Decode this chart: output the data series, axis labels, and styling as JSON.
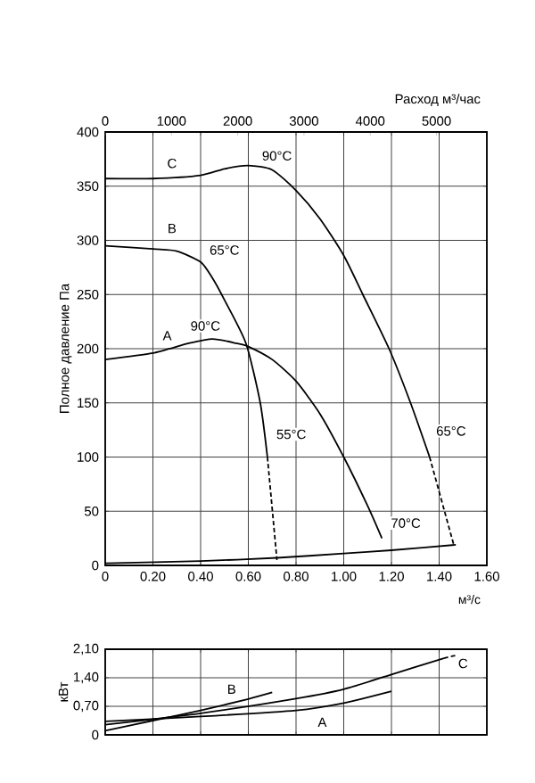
{
  "chart_data": [
    {
      "type": "line",
      "ylabel": "Полное давление Па",
      "xlabel": "м³/с",
      "x2label": "Расход м³/час",
      "xlim": [
        0,
        1.6
      ],
      "ylim": [
        0,
        400
      ],
      "x2lim": [
        0,
        5760
      ],
      "xticks": [
        0,
        {
          "value": 0.2,
          "label": "0.20"
        },
        {
          "value": 0.4,
          "label": "0.40"
        },
        {
          "value": 0.6,
          "label": "0.60"
        },
        {
          "value": 0.8,
          "label": "0.80"
        },
        {
          "value": 1.0,
          "label": "1.00"
        },
        {
          "value": 1.2,
          "label": "1.20"
        },
        {
          "value": 1.4,
          "label": "1.40"
        },
        {
          "value": 1.6,
          "label": "1.60"
        }
      ],
      "yticks": [
        0,
        50,
        100,
        150,
        200,
        250,
        300,
        350,
        400
      ],
      "x2ticks": [
        0,
        1000,
        2000,
        3000,
        4000,
        5000
      ],
      "grid": true,
      "marker": "none",
      "series": [
        {
          "color": "#000000",
          "line_style": "solid",
          "x": [
            0,
            0.2,
            0.4,
            0.5,
            0.6,
            0.7,
            0.8,
            0.9,
            1.0,
            1.08,
            1.19,
            1.28,
            1.36
          ],
          "values": [
            357,
            357,
            360,
            366,
            369,
            365,
            346,
            320,
            286,
            250,
            200,
            150,
            100
          ]
        },
        {
          "color": "#000000",
          "line_style": "dashed",
          "x": [
            1.36,
            1.46
          ],
          "values": [
            100,
            20
          ]
        },
        {
          "color": "#000000",
          "line_style": "solid",
          "x": [
            0,
            0.2,
            0.3,
            0.4,
            0.45,
            0.5,
            0.59,
            0.65,
            0.68
          ],
          "values": [
            295,
            292,
            290,
            280,
            265,
            245,
            205,
            150,
            100
          ]
        },
        {
          "color": "#000000",
          "line_style": "dashed",
          "x": [
            0.68,
            0.72
          ],
          "values": [
            100,
            5
          ]
        },
        {
          "color": "#000000",
          "line_style": "solid",
          "x": [
            0,
            0.2,
            0.35,
            0.45,
            0.55,
            0.6,
            0.7,
            0.8,
            0.9,
            1.0,
            1.1,
            1.16
          ],
          "values": [
            190,
            196,
            205,
            209,
            205,
            202,
            190,
            170,
            140,
            100,
            55,
            25
          ]
        },
        {
          "color": "#000000",
          "line_style": "solid",
          "x": [
            0,
            0.4,
            0.72,
            1.0,
            1.2,
            1.47
          ],
          "values": [
            2,
            4,
            7,
            11,
            14,
            19
          ]
        }
      ],
      "annotations": [
        {
          "text": "C",
          "x": 0.28,
          "y": 371
        },
        {
          "text": "90°C",
          "x": 0.72,
          "y": 378
        },
        {
          "text": "B",
          "x": 0.28,
          "y": 311
        },
        {
          "text": "65°C",
          "x": 0.5,
          "y": 291
        },
        {
          "text": "A",
          "x": 0.26,
          "y": 212
        },
        {
          "text": "90°C",
          "x": 0.42,
          "y": 221
        },
        {
          "text": "55°C",
          "x": 0.78,
          "y": 121
        },
        {
          "text": "65°C",
          "x": 1.45,
          "y": 124
        },
        {
          "text": "70°C",
          "x": 1.26,
          "y": 39
        }
      ]
    },
    {
      "type": "line",
      "ylabel": "кВт",
      "xlim": [
        0,
        1.6
      ],
      "ylim": [
        0,
        2.1
      ],
      "xticks": [
        {
          "value": 0,
          "label": null
        },
        {
          "value": 0.2,
          "label": null
        },
        {
          "value": 0.4,
          "label": null
        },
        {
          "value": 0.6,
          "label": null
        },
        {
          "value": 0.8,
          "label": null
        },
        {
          "value": 1.0,
          "label": null
        },
        {
          "value": 1.2,
          "label": null
        },
        {
          "value": 1.4,
          "label": null
        },
        {
          "value": 1.6,
          "label": null
        }
      ],
      "yticks": [
        0,
        {
          "value": 0.7,
          "label": "0,70"
        },
        {
          "value": 1.4,
          "label": "1,40"
        },
        {
          "value": 2.1,
          "label": "2,10"
        }
      ],
      "grid": true,
      "tick_labels": "y",
      "marker": "none",
      "series": [
        {
          "color": "#000000",
          "line_style": "solid",
          "x": [
            0,
            0.2,
            0.4,
            0.6,
            0.7
          ],
          "values": [
            0.1,
            0.35,
            0.6,
            0.88,
            1.04
          ]
        },
        {
          "color": "#000000",
          "line_style": "solid",
          "x": [
            0,
            0.4,
            0.8,
            1.0,
            1.2,
            1.42
          ],
          "values": [
            0.25,
            0.53,
            0.89,
            1.12,
            1.48,
            1.88
          ]
        },
        {
          "color": "#000000",
          "line_style": "dashed",
          "x": [
            1.42,
            1.47
          ],
          "values": [
            1.88,
            1.95
          ]
        },
        {
          "color": "#000000",
          "line_style": "solid",
          "x": [
            0,
            0.4,
            0.8,
            1.0,
            1.2
          ],
          "values": [
            0.33,
            0.45,
            0.6,
            0.78,
            1.07
          ]
        }
      ],
      "annotations": [
        {
          "text": "B",
          "x": 0.53,
          "y": 1.12
        },
        {
          "text": "A",
          "x": 0.91,
          "y": 0.31
        },
        {
          "text": "C",
          "x": 1.5,
          "y": 1.75
        }
      ]
    }
  ]
}
